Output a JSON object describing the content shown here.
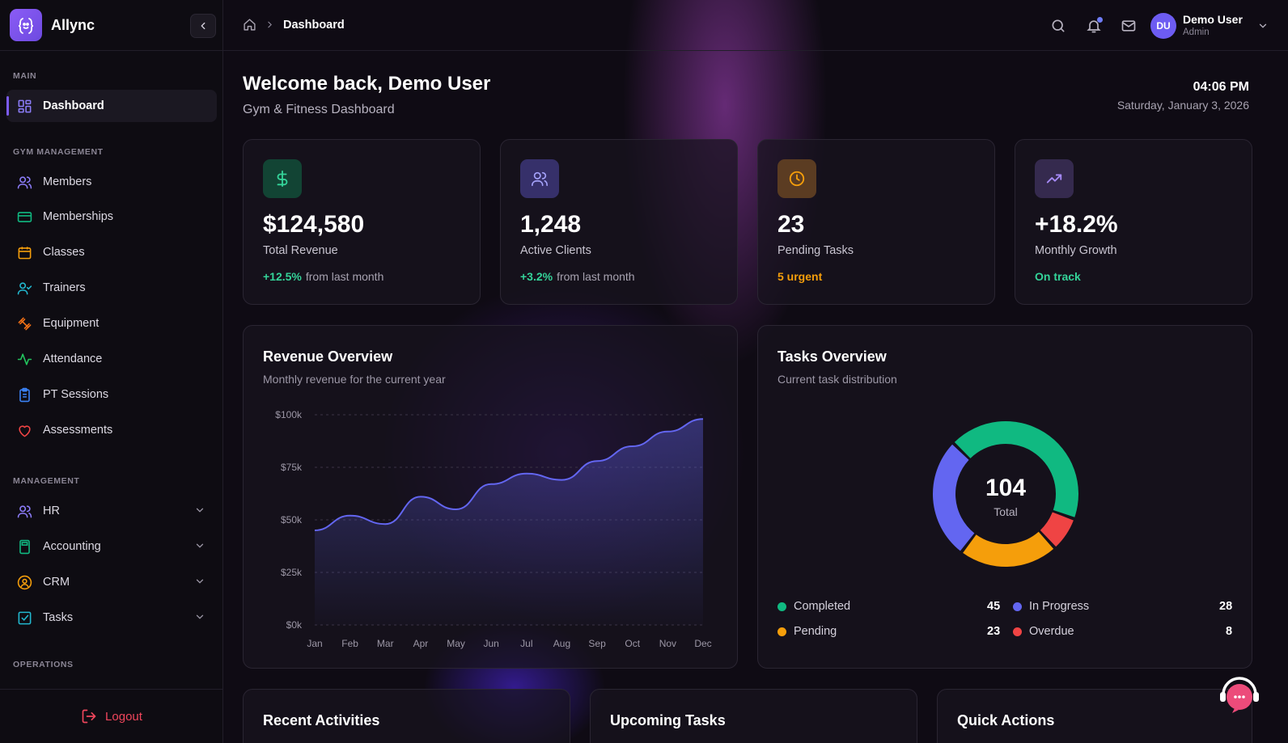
{
  "app": {
    "name": "Allync"
  },
  "sidebar": {
    "sections": {
      "main": "MAIN",
      "gym": "GYM MANAGEMENT",
      "management": "MANAGEMENT",
      "operations": "OPERATIONS"
    },
    "items": {
      "dashboard": "Dashboard",
      "members": "Members",
      "memberships": "Memberships",
      "classes": "Classes",
      "trainers": "Trainers",
      "equipment": "Equipment",
      "attendance": "Attendance",
      "pt_sessions": "PT Sessions",
      "assessments": "Assessments",
      "hr": "HR",
      "accounting": "Accounting",
      "crm": "CRM",
      "tasks": "Tasks"
    },
    "logout": "Logout"
  },
  "header": {
    "breadcrumb": "Dashboard",
    "user": {
      "initials": "DU",
      "name": "Demo User",
      "role": "Admin"
    }
  },
  "welcome": {
    "title": "Welcome back, Demo User",
    "subtitle": "Gym & Fitness Dashboard",
    "time": "04:06 PM",
    "date": "Saturday, January 3, 2026"
  },
  "stats": [
    {
      "value": "$124,580",
      "label": "Total Revenue",
      "change": "+12.5%",
      "rest": "from last month",
      "color": "#34d399"
    },
    {
      "value": "1,248",
      "label": "Active Clients",
      "change": "+3.2%",
      "rest": "from last month",
      "color": "#34d399"
    },
    {
      "value": "23",
      "label": "Pending Tasks",
      "change": "5 urgent",
      "rest": "",
      "color": "#f59e0b"
    },
    {
      "value": "+18.2%",
      "label": "Monthly Growth",
      "change": "On track",
      "rest": "",
      "color": "#34d399"
    }
  ],
  "revenue": {
    "title": "Revenue Overview",
    "subtitle": "Monthly revenue for the current year"
  },
  "tasks": {
    "title": "Tasks Overview",
    "subtitle": "Current task distribution",
    "total": "104",
    "total_label": "Total",
    "legend": [
      {
        "label": "Completed",
        "value": "45",
        "color": "#10b981"
      },
      {
        "label": "In Progress",
        "value": "28",
        "color": "#6366f1"
      },
      {
        "label": "Pending",
        "value": "23",
        "color": "#f59e0b"
      },
      {
        "label": "Overdue",
        "value": "8",
        "color": "#ef4444"
      }
    ]
  },
  "bottom": {
    "recent": "Recent Activities",
    "upcoming": "Upcoming Tasks",
    "quick": "Quick Actions"
  },
  "chart_data": [
    {
      "type": "area",
      "title": "Revenue Overview",
      "categories": [
        "Jan",
        "Feb",
        "Mar",
        "Apr",
        "May",
        "Jun",
        "Jul",
        "Aug",
        "Sep",
        "Oct",
        "Nov",
        "Dec"
      ],
      "values": [
        45000,
        52000,
        48000,
        61000,
        55000,
        67000,
        72000,
        69000,
        78000,
        85000,
        92000,
        98000
      ],
      "ylim": [
        0,
        100000
      ],
      "yticks": [
        "$0k",
        "$25k",
        "$50k",
        "$75k",
        "$100k"
      ],
      "ytick_values": [
        0,
        25000,
        50000,
        75000,
        100000
      ],
      "grid": true,
      "color": "#6366f1"
    },
    {
      "type": "pie",
      "title": "Tasks Overview",
      "categories": [
        "Completed",
        "Overdue",
        "Pending",
        "In Progress"
      ],
      "values": [
        45,
        8,
        23,
        28
      ],
      "colors": [
        "#10b981",
        "#ef4444",
        "#f59e0b",
        "#6366f1"
      ]
    }
  ]
}
